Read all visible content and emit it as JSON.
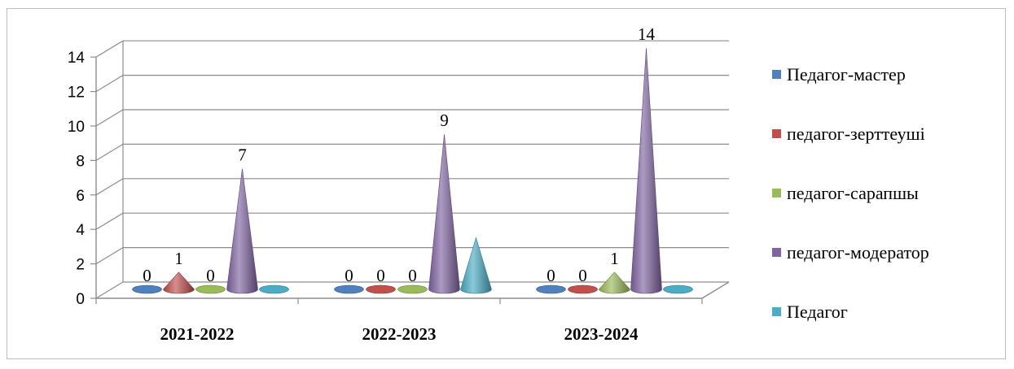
{
  "chart_data": {
    "type": "bar",
    "style": "3d-cone",
    "title": "",
    "xlabel": "",
    "ylabel": "",
    "ylim": [
      0,
      14
    ],
    "y_ticks": [
      "0",
      "2",
      "4",
      "6",
      "8",
      "10",
      "12",
      "14"
    ],
    "grid": true,
    "legend_position": "right",
    "categories": [
      "2021-2022",
      "2022-2023",
      "2023-2024"
    ],
    "series": [
      {
        "name": "Педагог-мастер",
        "color": "#4f81bd",
        "values": [
          0,
          0,
          0
        ],
        "labels": [
          "0",
          "0",
          "0"
        ]
      },
      {
        "name": "педагог-зерттеуші",
        "color": "#c0504d",
        "values": [
          1,
          0,
          0
        ],
        "labels": [
          "1",
          "0",
          "0"
        ]
      },
      {
        "name": "педагог-сарапшы",
        "color": "#9bbb59",
        "values": [
          0,
          0,
          1
        ],
        "labels": [
          "0",
          "0",
          "1"
        ]
      },
      {
        "name": "педагог-модератор",
        "color": "#8064a2",
        "values": [
          7,
          9,
          14
        ],
        "labels": [
          "7",
          "9",
          "14"
        ]
      },
      {
        "name": "Педагог",
        "color": "#4bacc6",
        "values": [
          0,
          3,
          0
        ],
        "labels": [
          "",
          "",
          ""
        ]
      }
    ]
  }
}
